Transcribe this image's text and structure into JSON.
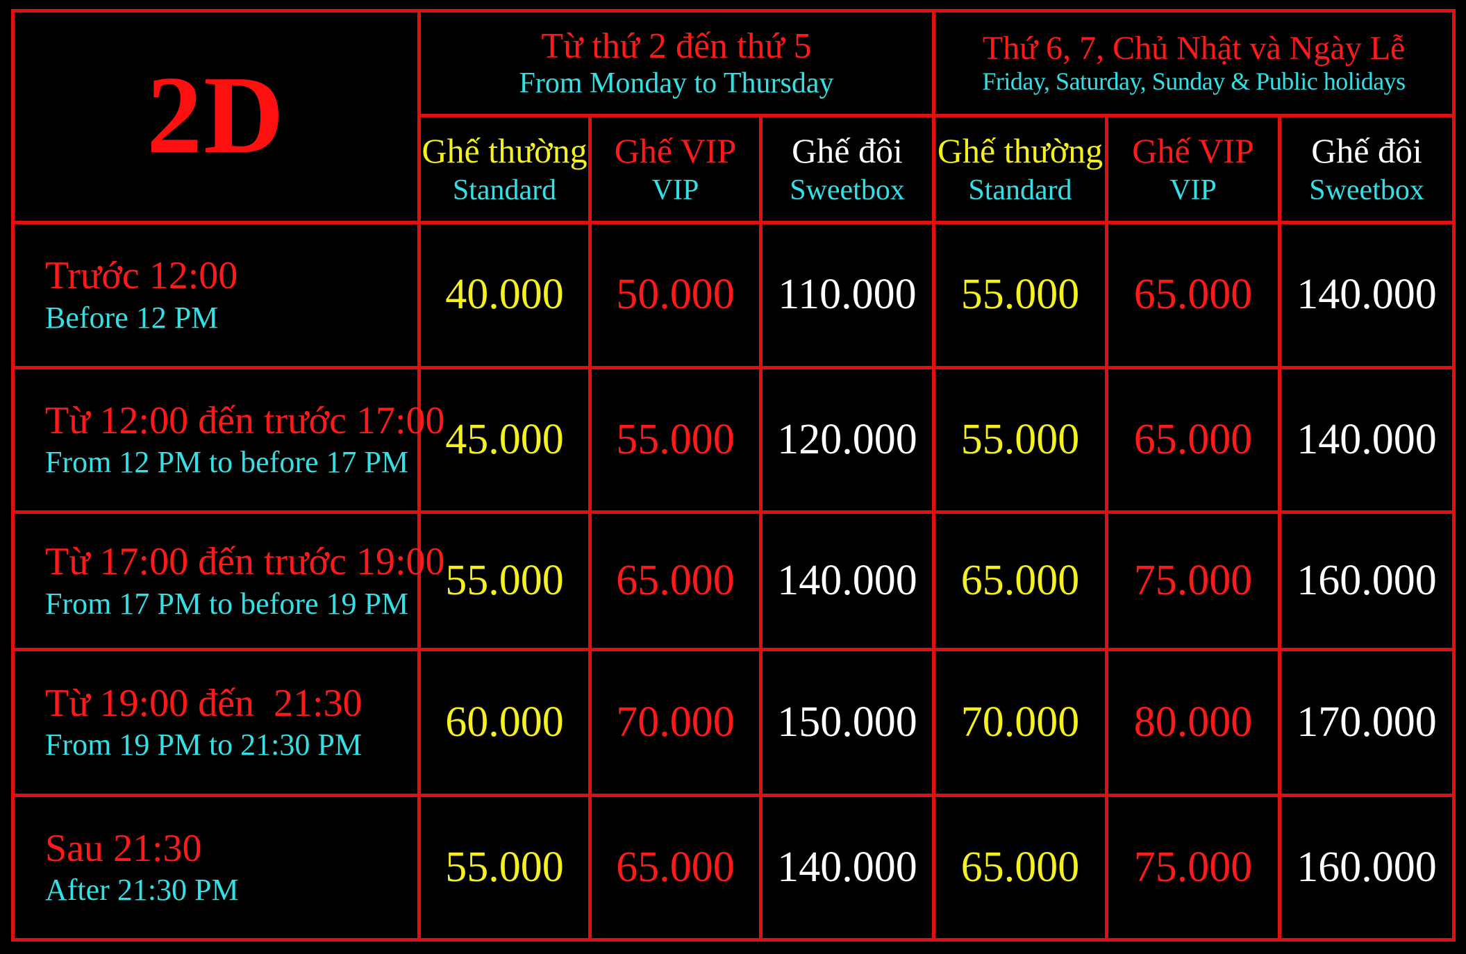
{
  "title": "2D",
  "groups": [
    {
      "label_vi": "Từ thứ 2 đến thứ 5",
      "label_en": "From Monday to Thursday"
    },
    {
      "label_vi": "Thứ 6, 7, Chủ Nhật và Ngày Lễ",
      "label_en": "Friday, Saturday, Sunday & Public holidays"
    }
  ],
  "seat_types": [
    {
      "label_vi": "Ghế thường",
      "label_en": "Standard",
      "color": "#f5f020"
    },
    {
      "label_vi": "Ghế VIP",
      "label_en": "VIP",
      "color": "#ff1a1a"
    },
    {
      "label_vi": "Ghế đôi",
      "label_en": "Sweetbox",
      "color": "#ffffff"
    }
  ],
  "rows": [
    {
      "time_vi": "Trước 12:00",
      "time_en": "Before 12 PM",
      "prices": [
        "40.000",
        "50.000",
        "110.000",
        "55.000",
        "65.000",
        "140.000"
      ]
    },
    {
      "time_vi": "Từ 12:00 đến trước 17:00",
      "time_en": "From 12 PM to before 17 PM",
      "prices": [
        "45.000",
        "55.000",
        "120.000",
        "55.000",
        "65.000",
        "140.000"
      ]
    },
    {
      "time_vi": "Từ 17:00 đến trước 19:00",
      "time_en": "From 17 PM to before 19 PM",
      "prices": [
        "55.000",
        "65.000",
        "140.000",
        "65.000",
        "75.000",
        "160.000"
      ]
    },
    {
      "time_vi": "Từ 19:00 đến  21:30",
      "time_en": "From 19 PM to 21:30 PM",
      "prices": [
        "60.000",
        "70.000",
        "150.000",
        "70.000",
        "80.000",
        "170.000"
      ]
    },
    {
      "time_vi": "Sau 21:30",
      "time_en": "After 21:30 PM",
      "prices": [
        "55.000",
        "65.000",
        "140.000",
        "65.000",
        "75.000",
        "160.000"
      ]
    }
  ],
  "colors": {
    "border": "#e01010",
    "background": "#000000",
    "standard": "#f5f020",
    "vip": "#ff1a1a",
    "sweetbox": "#ffffff",
    "english_text": "#33e0e6",
    "time_text": "#ff1a1a"
  }
}
